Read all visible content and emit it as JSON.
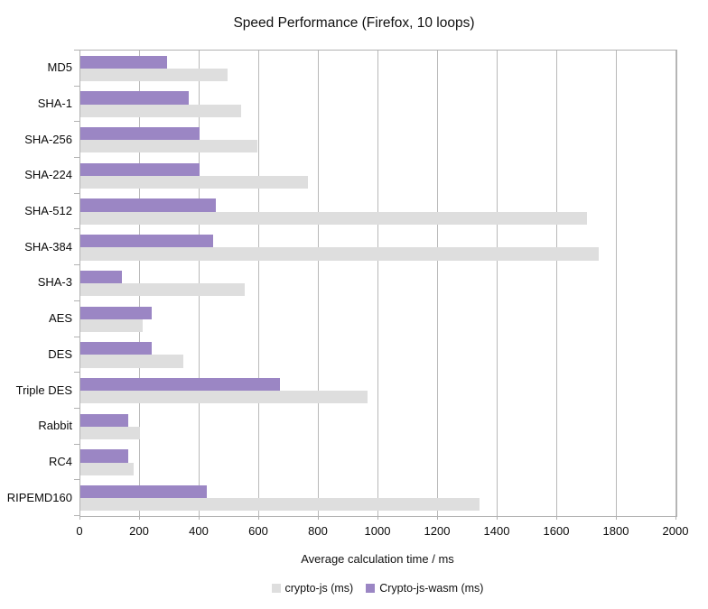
{
  "chart_data": {
    "type": "bar",
    "orientation": "horizontal",
    "title": "Speed Performance (Firefox, 10 loops)",
    "xlabel": "Average calculation time / ms",
    "xlim": [
      0,
      2000
    ],
    "xticks": [
      0,
      200,
      400,
      600,
      800,
      1000,
      1200,
      1400,
      1600,
      1800,
      2000
    ],
    "grid": true,
    "legend_position": "bottom",
    "categories": [
      "MD5",
      "SHA-1",
      "SHA-256",
      "SHA-224",
      "SHA-512",
      "SHA-384",
      "SHA-3",
      "AES",
      "DES",
      "Triple DES",
      "Rabbit",
      "RC4",
      "RIPEMD160"
    ],
    "series": [
      {
        "name": "crypto-js (ms)",
        "color": "#dedede",
        "values": [
          495,
          540,
          595,
          765,
          1700,
          1740,
          550,
          210,
          345,
          965,
          200,
          180,
          1340
        ]
      },
      {
        "name": "Crypto-js-wasm (ms)",
        "color": "#9b86c4",
        "values": [
          290,
          365,
          400,
          400,
          455,
          445,
          140,
          240,
          240,
          670,
          160,
          160,
          425
        ]
      }
    ]
  },
  "colors": {
    "axis_line": "#b2b2b2",
    "gridline": "#b9b9b9",
    "text": "#0a0a0a",
    "background": "#ffffff"
  }
}
